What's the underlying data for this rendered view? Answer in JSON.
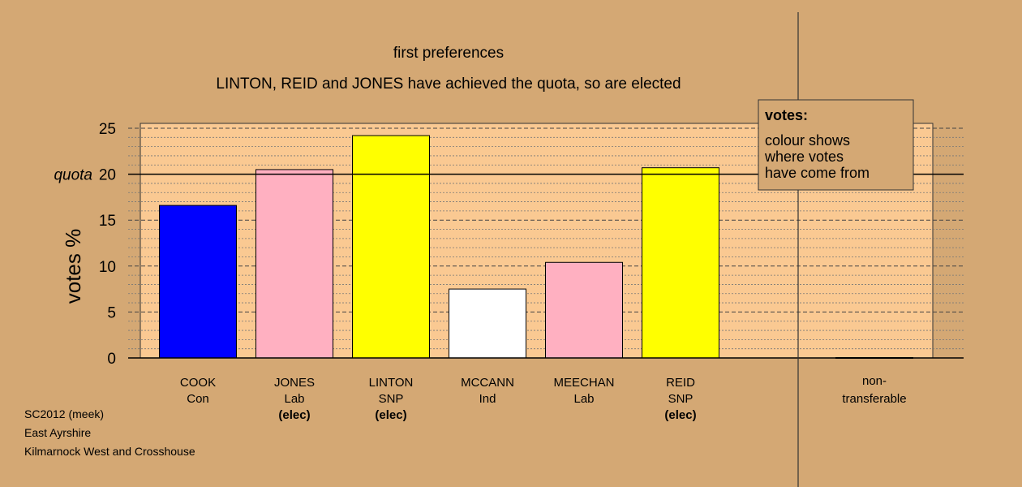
{
  "chart_data": {
    "type": "bar",
    "title": "first preferences",
    "subtitle": "LINTON, REID and JONES have achieved the quota, so are elected",
    "ylabel": "votes %",
    "ylim": [
      0,
      25
    ],
    "yticks": [
      0,
      5,
      10,
      15,
      20,
      25
    ],
    "quota_label": "quota",
    "quota": 20,
    "categories": [
      {
        "name": "COOK",
        "party": "Con",
        "status": "",
        "value": 16.6,
        "color": "#0000FF"
      },
      {
        "name": "JONES",
        "party": "Lab",
        "status": "(elec)",
        "value": 20.5,
        "color": "#FFB0C1"
      },
      {
        "name": "LINTON",
        "party": "SNP",
        "status": "(elec)",
        "value": 24.2,
        "color": "#FFFF00"
      },
      {
        "name": "MCCANN",
        "party": "Ind",
        "status": "",
        "value": 7.5,
        "color": "#FFFFFF"
      },
      {
        "name": "MEECHAN",
        "party": "Lab",
        "status": "",
        "value": 10.4,
        "color": "#FFB0C1"
      },
      {
        "name": "REID",
        "party": "SNP",
        "status": "(elec)",
        "value": 20.7,
        "color": "#FFFF00"
      }
    ],
    "nontransferable": {
      "label_line1": "non-",
      "label_line2": "transferable",
      "value": 0
    },
    "legend": {
      "title": "votes:",
      "lines": [
        "colour shows",
        "where votes",
        "have come from"
      ],
      "position": "top-right"
    },
    "plot_bg": "#FAC992",
    "grid": true
  },
  "footer": {
    "line1": "SC2012 (meek)",
    "line2": "East Ayrshire",
    "line3": "Kilmarnock West and Crosshouse"
  }
}
